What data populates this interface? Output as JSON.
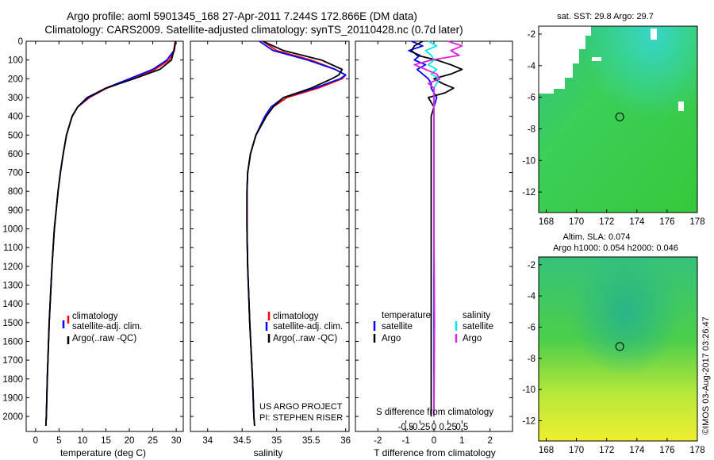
{
  "title": {
    "line1": "Argo profile: aoml 5901345_168 27-Apr-2011 7.244S 172.866E (DM data)",
    "line2": "Climatology: CARS2009. Satellite-adjusted climatology: synTS_20110428.nc (0.7d later)"
  },
  "colors": {
    "climatology": "#ff0000",
    "satellite": "#0000ff",
    "argo": "#000000",
    "sat_s": "#00e5e5",
    "argo_s": "#e020e0"
  },
  "chart_data": [
    {
      "type": "line",
      "panel": "temperature",
      "xlabel": "temperature (deg C)",
      "ylabel": "",
      "xlim": [
        -2,
        31.5
      ],
      "ylim": [
        2080,
        0
      ],
      "xticks": [
        0,
        5,
        10,
        15,
        20,
        25,
        30
      ],
      "yticks": [
        0,
        100,
        200,
        300,
        400,
        500,
        600,
        700,
        800,
        900,
        1000,
        1100,
        1200,
        1300,
        1400,
        1500,
        1600,
        1700,
        1800,
        1900,
        2000
      ],
      "legend": [
        "climatology",
        "satellite-adj. clim.",
        "Argo(..raw -QC)"
      ],
      "depth": [
        0,
        50,
        100,
        150,
        200,
        250,
        300,
        350,
        400,
        500,
        600,
        700,
        800,
        1000,
        1200,
        1500,
        1800,
        2000,
        2050
      ],
      "series": [
        {
          "name": "climatology",
          "values": [
            29.9,
            29.6,
            28.5,
            25.5,
            20.5,
            15.2,
            11.5,
            9.0,
            7.8,
            6.6,
            5.9,
            5.3,
            4.8,
            4.0,
            3.5,
            2.9,
            2.5,
            2.3,
            2.2
          ]
        },
        {
          "name": "satellite-adj. clim.",
          "values": [
            29.8,
            29.5,
            28.0,
            25.0,
            20.0,
            15.0,
            11.3,
            9.0,
            7.8,
            6.6,
            5.9,
            5.3,
            4.8,
            4.0,
            3.5,
            2.9,
            2.5,
            2.3,
            2.2
          ]
        },
        {
          "name": "Argo(..raw -QC)",
          "values": [
            29.8,
            29.5,
            29.0,
            26.5,
            21.0,
            15.0,
            11.0,
            9.0,
            7.8,
            6.6,
            5.9,
            5.3,
            4.8,
            4.0,
            3.5,
            2.9,
            2.5,
            2.3,
            2.2
          ]
        }
      ],
      "annotations": []
    },
    {
      "type": "line",
      "panel": "salinity",
      "xlabel": "salinity",
      "xlim": [
        33.75,
        36.05
      ],
      "ylim": [
        2080,
        0
      ],
      "xticks": [
        34,
        34.5,
        35,
        35.5,
        36
      ],
      "xticklabels": [
        "34",
        "34.5",
        "35",
        "35.5",
        "36"
      ],
      "legend": [
        "climatology",
        "satellite-adj. clim.",
        "Argo(..raw -QC)"
      ],
      "depth": [
        0,
        50,
        100,
        150,
        180,
        200,
        250,
        300,
        350,
        400,
        500,
        600,
        700,
        800,
        1000,
        1200,
        1500,
        1800,
        2000,
        2050
      ],
      "series": [
        {
          "name": "climatology",
          "values": [
            34.8,
            35.0,
            35.5,
            35.85,
            36.0,
            35.95,
            35.6,
            35.15,
            34.95,
            34.85,
            34.7,
            34.62,
            34.58,
            34.57,
            34.57,
            34.58,
            34.61,
            34.65,
            34.67,
            34.68
          ]
        },
        {
          "name": "satellite-adj. clim.",
          "values": [
            34.75,
            34.95,
            35.45,
            35.85,
            36.0,
            35.92,
            35.55,
            35.1,
            34.92,
            34.83,
            34.7,
            34.62,
            34.58,
            34.57,
            34.57,
            34.58,
            34.61,
            34.65,
            34.67,
            34.68
          ]
        },
        {
          "name": "Argo(..raw -QC)",
          "values": [
            34.8,
            35.1,
            35.65,
            35.95,
            35.9,
            35.8,
            35.5,
            35.1,
            34.95,
            34.85,
            34.7,
            34.62,
            34.58,
            34.57,
            34.57,
            34.58,
            34.61,
            34.65,
            34.67,
            34.68
          ]
        }
      ],
      "annotations": [
        "US ARGO PROJECT",
        "PI: STEPHEN RISER"
      ]
    },
    {
      "type": "line",
      "panel": "difference",
      "xlabel": "T difference from climatology",
      "xlabel2": "S difference from climatology",
      "xlim": [
        -2.8,
        2.8
      ],
      "ylim": [
        2080,
        0
      ],
      "xticks": [
        -2,
        -1,
        0,
        1,
        2
      ],
      "xticks2": [
        -0.5,
        -0.25,
        0,
        0.25,
        0.5
      ],
      "xticklabels2": [
        "-0.5",
        "-0.25",
        "0",
        "0.25",
        "0.5"
      ],
      "legend_headers": [
        "temperature",
        "salinity"
      ],
      "legend": [
        "satellite",
        "Argo",
        "satellite",
        "Argo"
      ],
      "depth": [
        0,
        25,
        50,
        75,
        100,
        125,
        150,
        175,
        200,
        225,
        250,
        275,
        300,
        350,
        400,
        500,
        600,
        800,
        1000,
        1500,
        2000
      ],
      "series": [
        {
          "name": "T satellite",
          "values": [
            -0.8,
            -0.4,
            -0.9,
            -0.5,
            -0.7,
            -0.3,
            -0.6,
            -0.4,
            -0.2,
            -0.1,
            -0.1,
            0.0,
            0.1,
            0.0,
            0.0,
            0.0,
            0.0,
            0.0,
            0.0,
            0.0,
            0.0
          ]
        },
        {
          "name": "T Argo",
          "values": [
            -0.4,
            -0.7,
            -0.8,
            -0.6,
            0.1,
            0.6,
            1.0,
            0.6,
            0.0,
            0.3,
            0.7,
            0.4,
            -0.2,
            0.0,
            -0.1,
            -0.1,
            -0.1,
            -0.1,
            -0.1,
            -0.1,
            -0.1
          ]
        },
        {
          "name": "S satellite",
          "values": [
            -0.1,
            0.05,
            -0.15,
            -0.05,
            0.0,
            -0.1,
            0.05,
            -0.05,
            0.1,
            0.05,
            0.0,
            0.0,
            0.0,
            0.0,
            0.0,
            0.0,
            0.0,
            0.0,
            0.0,
            0.01,
            0.0
          ]
        },
        {
          "name": "S Argo",
          "values": [
            0.25,
            0.5,
            0.3,
            0.45,
            -0.05,
            -0.35,
            -0.15,
            0.05,
            0.1,
            -0.1,
            0.0,
            0.0,
            0.0,
            0.0,
            0.0,
            0.0,
            0.0,
            0.0,
            0.0,
            0.01,
            0.0
          ]
        }
      ]
    },
    {
      "type": "heatmap",
      "panel": "sst_map",
      "title": "sat. SST: 29.8  Argo: 29.7",
      "xlim": [
        167.5,
        178
      ],
      "ylim": [
        -13.3,
        -1.5
      ],
      "xticks": [
        168,
        170,
        172,
        174,
        176,
        178
      ],
      "yticks": [
        -2,
        -4,
        -6,
        -8,
        -10,
        -12
      ],
      "marker": {
        "lon": 172.866,
        "lat": -7.244
      }
    },
    {
      "type": "heatmap",
      "panel": "sla_map",
      "title1": "Altim. SLA: 0.074",
      "title2": "Argo h1000: 0.054  h2000: 0.046",
      "xlim": [
        167.5,
        178
      ],
      "ylim": [
        -13.3,
        -1.5
      ],
      "xticks": [
        168,
        170,
        172,
        174,
        176,
        178
      ],
      "yticks": [
        -2,
        -4,
        -6,
        -8,
        -10,
        -12
      ],
      "marker": {
        "lon": 172.866,
        "lat": -7.244
      }
    }
  ],
  "credit": "©IMOS 03-Aug-2017 03:26:47"
}
